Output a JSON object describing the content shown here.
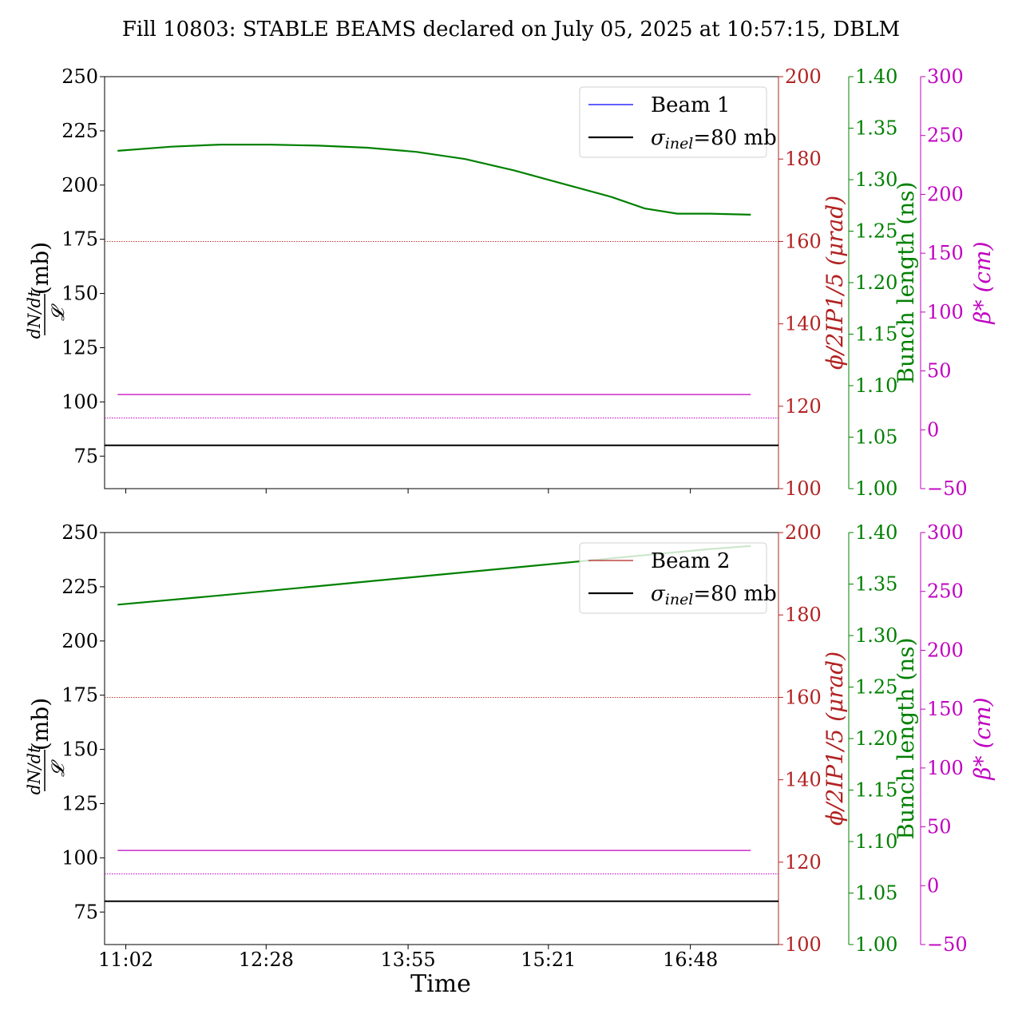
{
  "chart_data": {
    "type": "line",
    "title": "Fill 10803: STABLE BEAMS declared on July 05, 2025 at 10:57:15, DBLM",
    "xlabel": "Time",
    "x_ticks": [
      "11:02",
      "12:28",
      "13:55",
      "15:21",
      "16:48"
    ],
    "colors": {
      "left": "#000000",
      "phi": "#b22222",
      "bunch": "#008000",
      "beta": "#c000c0",
      "beam1": "#0000ff",
      "beam2": "#b22222"
    },
    "axes": {
      "left": {
        "label": "dN/dt / 𝓛 (mb)",
        "ylim": [
          60,
          250
        ],
        "ticks": [
          75,
          100,
          125,
          150,
          175,
          200,
          225,
          250
        ]
      },
      "phi": {
        "label": "ϕ/2IP1/5 (μrad)",
        "ylim": [
          100,
          200
        ],
        "ticks": [
          100,
          120,
          140,
          160,
          180,
          200
        ]
      },
      "bunch": {
        "label": "Bunch length (ns)",
        "ylim": [
          1.0,
          1.4
        ],
        "ticks": [
          "1.00",
          "1.05",
          "1.10",
          "1.15",
          "1.20",
          "1.25",
          "1.30",
          "1.35",
          "1.40"
        ]
      },
      "beta": {
        "label": "β* (cm)",
        "ylim": [
          -50,
          300
        ],
        "ticks": [
          "−50",
          "0",
          "50",
          "100",
          "150",
          "200",
          "250",
          "300"
        ]
      }
    },
    "panels": [
      {
        "legend": [
          "Beam 1",
          "σinel=80 mb"
        ],
        "series": [
          {
            "name": "Beam 1",
            "axis": "left",
            "color": "#0000ff",
            "x": [],
            "values": []
          },
          {
            "name": "σinel=80 mb",
            "axis": "left",
            "color": "#000000",
            "x": [
              "10:49",
              "17:42"
            ],
            "values": [
              80,
              80
            ]
          },
          {
            "name": "Bunch length",
            "axis": "bunch",
            "color": "#008000",
            "x": [
              "10:57",
              "11:30",
              "12:00",
              "12:30",
              "13:00",
              "13:30",
              "14:00",
              "14:30",
              "15:00",
              "15:30",
              "16:00",
              "16:20",
              "16:40",
              "17:00",
              "17:25"
            ],
            "values": [
              1.328,
              1.332,
              1.334,
              1.334,
              1.333,
              1.331,
              1.327,
              1.32,
              1.309,
              1.296,
              1.283,
              1.272,
              1.267,
              1.267,
              1.266
            ]
          },
          {
            "name": "ϕ/2IP1/5",
            "axis": "phi",
            "color": "#b22222",
            "style": "dotted",
            "x": [
              "10:49",
              "17:42"
            ],
            "values": [
              160,
              160
            ]
          },
          {
            "name": "β* (solid)",
            "axis": "beta",
            "color": "#c000c0",
            "x": [
              "10:57",
              "17:25"
            ],
            "values": [
              30,
              30
            ]
          },
          {
            "name": "β* (dotted)",
            "axis": "beta",
            "color": "#c000c0",
            "style": "dotted",
            "x": [
              "10:49",
              "17:42"
            ],
            "values": [
              10,
              10
            ]
          }
        ]
      },
      {
        "legend": [
          "Beam 2",
          "σinel=80 mb"
        ],
        "series": [
          {
            "name": "Beam 2",
            "axis": "left",
            "color": "#b22222",
            "x": [],
            "values": []
          },
          {
            "name": "σinel=80 mb",
            "axis": "left",
            "color": "#000000",
            "x": [
              "10:49",
              "17:42"
            ],
            "values": [
              80,
              80
            ]
          },
          {
            "name": "Bunch length",
            "axis": "bunch",
            "color": "#008000",
            "x": [
              "10:57",
              "12:00",
              "13:00",
              "14:00",
              "15:00",
              "16:00",
              "17:00",
              "17:25"
            ],
            "values": [
              1.33,
              1.339,
              1.348,
              1.357,
              1.366,
              1.375,
              1.384,
              1.387
            ]
          },
          {
            "name": "ϕ/2IP1/5",
            "axis": "phi",
            "color": "#b22222",
            "style": "dotted",
            "x": [
              "10:49",
              "17:42"
            ],
            "values": [
              160,
              160
            ]
          },
          {
            "name": "β* (solid)",
            "axis": "beta",
            "color": "#c000c0",
            "x": [
              "10:57",
              "17:25"
            ],
            "values": [
              30,
              30
            ]
          },
          {
            "name": "β* (dotted)",
            "axis": "beta",
            "color": "#c000c0",
            "style": "dotted",
            "x": [
              "10:49",
              "17:42"
            ],
            "values": [
              10,
              10
            ]
          }
        ]
      }
    ]
  }
}
